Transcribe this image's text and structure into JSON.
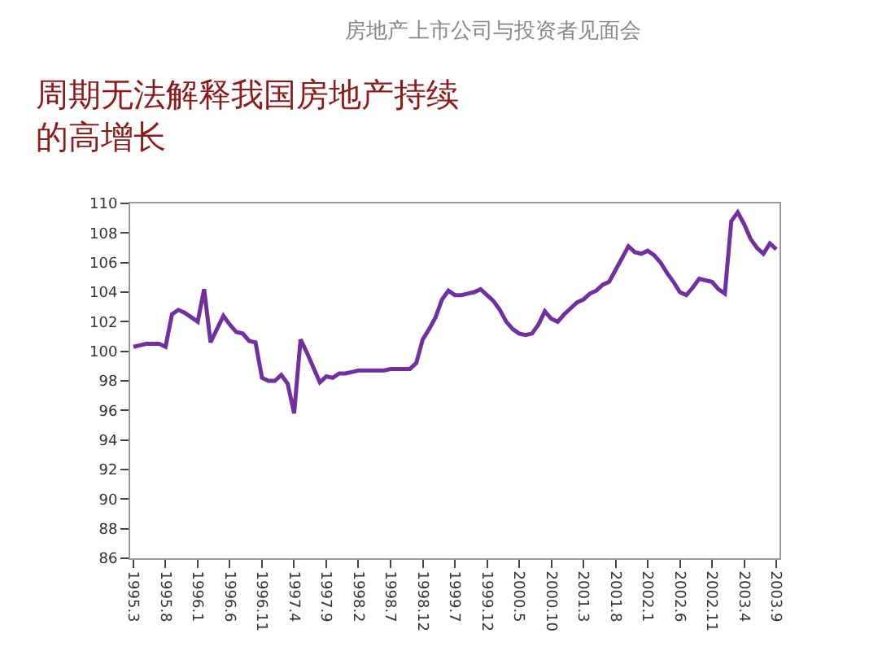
{
  "chart_data": {
    "type": "line",
    "title": "周期无法解释我国房地产持续的高增长",
    "subtitle": "房地产上市公司与投资者见面会",
    "categories": [
      "1995.3",
      null,
      null,
      null,
      null,
      "1995.8",
      null,
      null,
      null,
      null,
      "1996.1",
      null,
      null,
      null,
      null,
      "1996.6",
      null,
      null,
      null,
      null,
      "1996.11",
      null,
      null,
      null,
      null,
      "1997.4",
      null,
      null,
      null,
      null,
      "1997.9",
      null,
      null,
      null,
      null,
      "1998.2",
      null,
      null,
      null,
      null,
      "1998.7",
      null,
      null,
      null,
      null,
      "1998.12",
      null,
      null,
      null,
      null,
      "1999.7",
      null,
      null,
      null,
      null,
      "1999.12",
      null,
      null,
      null,
      null,
      "2000.5",
      null,
      null,
      null,
      null,
      "2000.10",
      null,
      null,
      null,
      null,
      "2001.3",
      null,
      null,
      null,
      null,
      "2001.8",
      null,
      null,
      null,
      null,
      "2002.1",
      null,
      null,
      null,
      null,
      "2002.6",
      null,
      null,
      null,
      null,
      "2002.11",
      null,
      null,
      null,
      null,
      "2003.4",
      null,
      null,
      null,
      null,
      "2003.9"
    ],
    "series": [
      {
        "color": "#7030a0",
        "values": [
          100.3,
          100.4,
          100.5,
          100.5,
          100.5,
          100.3,
          102.5,
          102.8,
          102.6,
          102.3,
          102.0,
          104.2,
          100.6,
          101.5,
          102.4,
          101.8,
          101.3,
          101.2,
          100.7,
          100.6,
          98.2,
          98.0,
          98.0,
          98.4,
          97.8,
          95.8,
          100.8,
          99.9,
          98.9,
          97.9,
          98.3,
          98.2,
          98.5,
          98.5,
          98.6,
          98.7,
          98.7,
          98.7,
          98.7,
          98.7,
          98.8,
          98.8,
          98.8,
          98.8,
          99.2,
          100.8,
          101.5,
          102.3,
          103.5,
          104.1,
          103.8,
          103.8,
          103.9,
          104.0,
          104.2,
          103.8,
          103.4,
          102.8,
          102.0,
          101.5,
          101.2,
          101.1,
          101.2,
          101.8,
          102.7,
          102.2,
          102.0,
          102.5,
          102.9,
          103.3,
          103.5,
          103.9,
          104.1,
          104.5,
          104.7,
          105.5,
          106.3,
          107.1,
          106.7,
          106.6,
          106.8,
          106.5,
          106.0,
          105.3,
          104.7,
          104.0,
          103.8,
          104.3,
          104.9,
          104.8,
          104.7,
          104.2,
          103.9,
          108.8,
          109.4,
          108.6,
          107.6,
          107.0,
          106.6,
          107.3,
          106.9
        ]
      }
    ],
    "ylim": [
      86,
      110
    ],
    "yticks": [
      86,
      88,
      90,
      92,
      94,
      96,
      98,
      100,
      102,
      104,
      106,
      108,
      110
    ],
    "marker": "none",
    "line_style": "solid"
  }
}
